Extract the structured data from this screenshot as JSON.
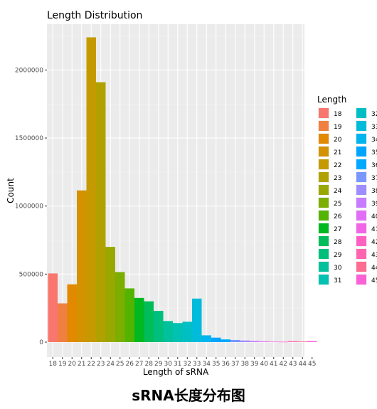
{
  "caption": "sRNA长度分布图",
  "chart_data": {
    "type": "bar",
    "title": "Length Distribution",
    "xlabel": "Length of sRNA",
    "ylabel": "Count",
    "ylim": [
      0,
      2300000
    ],
    "yticks": [
      0,
      500000,
      1000000,
      1500000,
      2000000
    ],
    "grid": true,
    "legend_title": "Length",
    "legend_position": "right",
    "categories": [
      "18",
      "19",
      "20",
      "21",
      "22",
      "23",
      "24",
      "25",
      "26",
      "27",
      "28",
      "29",
      "30",
      "31",
      "32",
      "33",
      "34",
      "35",
      "36",
      "37",
      "38",
      "39",
      "40",
      "41",
      "42",
      "43",
      "44",
      "45"
    ],
    "values": [
      505000,
      285000,
      425000,
      1115000,
      2240000,
      1910000,
      700000,
      515000,
      395000,
      325000,
      300000,
      230000,
      155000,
      140000,
      150000,
      320000,
      50000,
      33000,
      20000,
      16000,
      12000,
      9000,
      6000,
      4000,
      3000,
      7000,
      5000,
      8000
    ],
    "colors": [
      "#F8766D",
      "#EF8042",
      "#E38900",
      "#D39200",
      "#C49A00",
      "#B0A100",
      "#99A800",
      "#7CAE00",
      "#53B400",
      "#00B81F",
      "#00BC59",
      "#00BF7D",
      "#00C19C",
      "#00C1B2",
      "#00BFC4",
      "#00BBDA",
      "#00B4EF",
      "#00A5FF",
      "#00A9FF",
      "#7997FF",
      "#9F8CFF",
      "#C77CFF",
      "#E26EF7",
      "#F265E7",
      "#FF61C3",
      "#FF64B0",
      "#FF6C91",
      "#FB61D7"
    ]
  }
}
